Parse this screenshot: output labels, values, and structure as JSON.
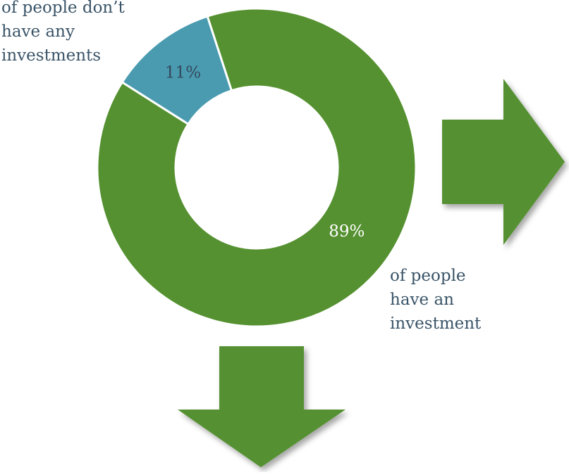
{
  "chart_data": {
    "type": "pie",
    "variant": "donut",
    "categories": [
      "don't have any investments",
      "have an investment"
    ],
    "values": [
      11,
      89
    ],
    "data_labels": [
      "11%",
      "89%"
    ],
    "colors": [
      "#4a9bb0",
      "#559130"
    ],
    "label_colors": [
      "#34495e",
      "#ffffff"
    ]
  },
  "callouts": {
    "no_investments": "of people don’t\nhave any\ninvestments",
    "have_investment": "of people\nhave an\ninvestment"
  },
  "arrow_color": "#559130"
}
